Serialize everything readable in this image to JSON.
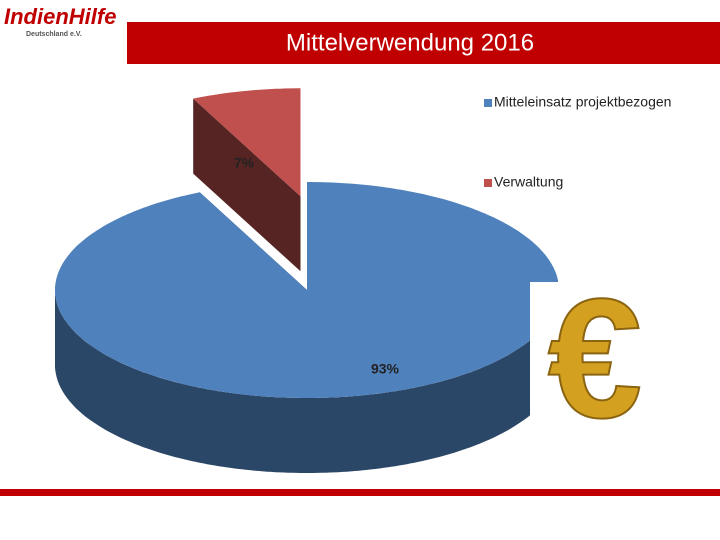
{
  "logo": {
    "name": "IndienHilfe",
    "tagline": "Deutschland e.V."
  },
  "chart_data": {
    "type": "pie",
    "title": "Mittelverwendung 2016",
    "categories": [
      "Mitteleinsatz projektbezogen",
      "Verwaltung"
    ],
    "values": [
      93,
      7
    ],
    "value_labels": [
      "93%",
      "7%"
    ],
    "colors": [
      "#4f81bd",
      "#c0504d"
    ],
    "legend": "right"
  }
}
